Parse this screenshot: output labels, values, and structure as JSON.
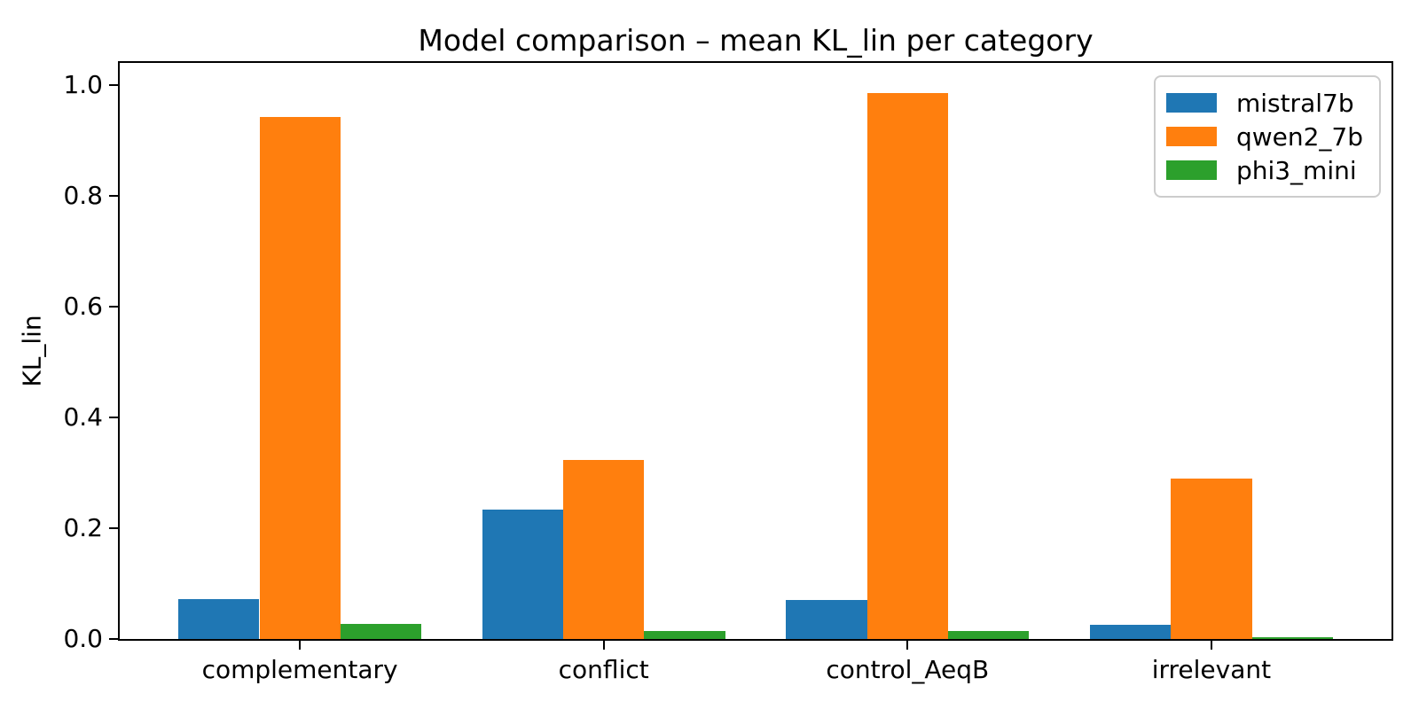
{
  "chart_data": {
    "type": "bar",
    "title": "Model comparison – mean KL_lin per category",
    "xlabel": "",
    "ylabel": "KL_lin",
    "categories": [
      "complementary",
      "conflict",
      "control_AeqB",
      "irrelevant"
    ],
    "series": [
      {
        "name": "mistral7b",
        "color": "#1f77b4",
        "values": [
          0.072,
          0.233,
          0.07,
          0.026
        ]
      },
      {
        "name": "qwen2_7b",
        "color": "#ff7f0e",
        "values": [
          0.943,
          0.324,
          0.986,
          0.289
        ]
      },
      {
        "name": "phi3_mini",
        "color": "#2ca02c",
        "values": [
          0.027,
          0.014,
          0.014,
          0.004
        ]
      }
    ],
    "ylim": [
      0,
      1.04
    ],
    "yticks": [
      "0.0",
      "0.2",
      "0.4",
      "0.6",
      "0.8",
      "1.0"
    ],
    "xlim": [
      -0.593,
      3.593
    ],
    "bar_group_width": 0.8,
    "legend_position": "upper right",
    "grid": false,
    "background": "#ffffff",
    "axis_color": "#000000"
  }
}
